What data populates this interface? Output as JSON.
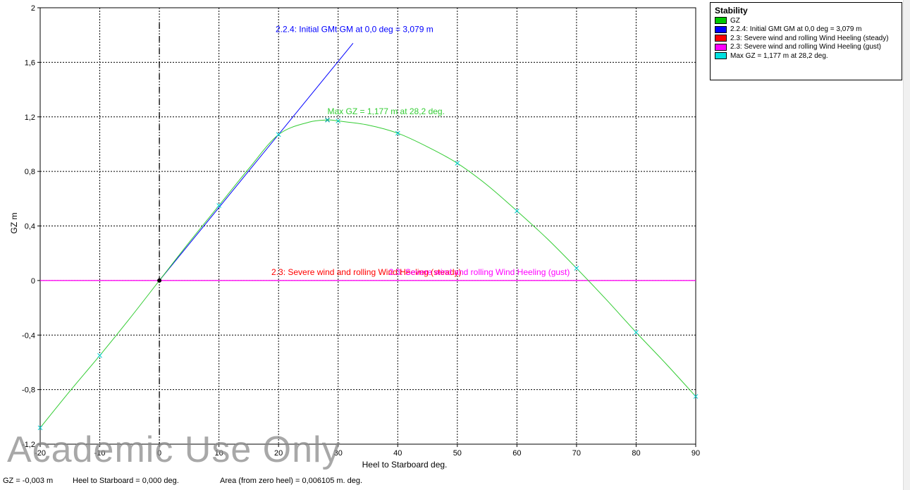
{
  "chart_data": {
    "type": "line",
    "xlabel": "Heel to Starboard   deg.",
    "ylabel": "GZ   m",
    "xlim": [
      -20,
      90
    ],
    "ylim": [
      -1.2,
      2
    ],
    "x_ticks": [
      "-20",
      "-10",
      "0",
      "10",
      "20",
      "30",
      "40",
      "50",
      "60",
      "70",
      "80",
      "90"
    ],
    "y_ticks": [
      "-1,2",
      "-0,8",
      "-0,4",
      "0",
      "0,4",
      "0,8",
      "1,2",
      "1,6",
      "2"
    ],
    "grid": true,
    "legend_placement": "top-right",
    "legend": {
      "title": "Stability",
      "items": [
        {
          "label": "GZ",
          "color": "#00c800"
        },
        {
          "label": "2.2.4: Initial GMt GM at 0,0 deg = 3,079 m",
          "color": "#0000ff"
        },
        {
          "label": "2.3: Severe wind and rolling Wind Heeling (steady)",
          "color": "#ff0000"
        },
        {
          "label": "2.3: Severe wind and rolling Wind Heeling (gust)",
          "color": "#ff00ff"
        },
        {
          "label": "Max GZ = 1,177 m at 28,2 deg.",
          "color": "#00e0e0"
        }
      ]
    },
    "series": [
      {
        "name": "GZ",
        "color": "#33cc33",
        "x": [
          -20,
          -15,
          -10,
          -5,
          0,
          5,
          10,
          15,
          20,
          25,
          28.2,
          30,
          35,
          40,
          45,
          50,
          55,
          60,
          65,
          70,
          75,
          80,
          85,
          90
        ],
        "y": [
          -1.08,
          -0.81,
          -0.55,
          -0.28,
          0.0,
          0.28,
          0.55,
          0.82,
          1.07,
          1.16,
          1.177,
          1.17,
          1.14,
          1.08,
          0.98,
          0.86,
          0.7,
          0.51,
          0.31,
          0.09,
          -0.14,
          -0.38,
          -0.61,
          -0.85
        ],
        "markers_x": [
          -20,
          -10,
          10,
          20,
          30,
          40,
          50,
          60,
          70,
          80,
          90
        ]
      },
      {
        "name": "2.2.4: Initial GMt GM at 0,0 deg = 3,079 m",
        "color": "#0000ff",
        "x": [
          0,
          32.5
        ],
        "y": [
          0,
          1.74
        ]
      },
      {
        "name": "2.3: Severe wind and rolling Wind Heeling (steady)",
        "color": "#ff0000",
        "x": [
          -20,
          90
        ],
        "y": [
          0,
          0
        ]
      },
      {
        "name": "2.3: Severe wind and rolling Wind Heeling (gust)",
        "color": "#ff00ff",
        "x": [
          -20,
          90
        ],
        "y": [
          0,
          0
        ]
      }
    ],
    "max_gz": {
      "x": 28.2,
      "y": 1.177,
      "label": "Max GZ = 1,177 m at 28,2 deg."
    },
    "cursor_point": {
      "x": 0,
      "y": 0
    },
    "annotations": [
      {
        "text": "2.2.4: Initial GMt GM at 0,0 deg = 3,079 m",
        "x": 19.5,
        "y": 1.8,
        "color": "#0000ff"
      },
      {
        "text": "Max GZ = 1,177 m at 28,2 deg.",
        "x": 28.2,
        "y": 1.2,
        "color": "#33cc33"
      },
      {
        "text": "2.3: Severe wind and rolling Wind Heeling (steady)",
        "x": 18.8,
        "y": 0.02,
        "color": "#ff0000"
      },
      {
        "text": "2.3: Severe wind and rolling Wind Heeling (gust)",
        "x": 38.5,
        "y": 0.02,
        "color": "#ff00ff"
      }
    ]
  },
  "status": {
    "gz": "GZ =  -0,003 m",
    "heel": "Heel to Starboard =  0,000  deg.",
    "area": "Area (from zero heel) = 0,006105 m. deg."
  },
  "watermark": "Academic Use Only"
}
